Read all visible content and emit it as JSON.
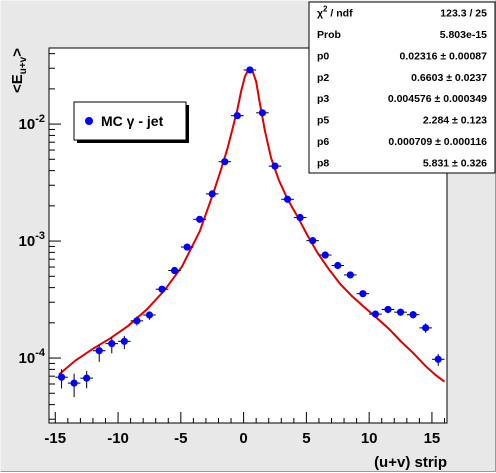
{
  "chart_data": {
    "type": "scatter",
    "title": "",
    "xlabel": "(u+v) strip",
    "ylabel_main": "<E",
    "ylabel_sub": "u+v",
    "ylabel_end": ">",
    "xlim": [
      -15.5,
      16.2
    ],
    "ylim": [
      2.785e-05,
      0.0447
    ],
    "yscale": "log",
    "grid": false,
    "legend_position": "top-left",
    "x_ticks": [
      -15,
      -10,
      -5,
      0,
      5,
      10,
      15
    ],
    "x_tick_labels": [
      "-15",
      "-10",
      "-5",
      "0",
      "5",
      "10",
      "15"
    ],
    "y_ticks": [
      0.0001,
      0.001,
      0.01
    ],
    "y_tick_labels": [
      {
        "base": "10",
        "exp": "-4"
      },
      {
        "base": "10",
        "exp": "-3"
      },
      {
        "base": "10",
        "exp": "-2"
      }
    ],
    "series": [
      {
        "name": "MC γ - jet",
        "color": "#0000ff",
        "points": [
          {
            "x": -14.5,
            "y": 6.857e-05,
            "yerr_lo": 1.37e-05,
            "yerr_hi": 1.17e-05
          },
          {
            "x": -13.5,
            "y": 6.107e-05,
            "yerr_lo": 1.47e-05,
            "yerr_hi": 1.25e-05
          },
          {
            "x": -12.5,
            "y": 6.734e-05,
            "yerr_lo": 1.22e-05,
            "yerr_hi": 1.01e-05
          },
          {
            "x": -11.5,
            "y": 0.0001155,
            "yerr_lo": 2.27e-05,
            "yerr_hi": 1.44e-05
          },
          {
            "x": -10.5,
            "y": 0.0001328,
            "yerr_lo": 2.29e-05,
            "yerr_hi": 1.53e-05
          },
          {
            "x": -9.5,
            "y": 0.000139,
            "yerr_lo": 1.98e-05,
            "yerr_hi": 1.58e-05
          },
          {
            "x": -8.5,
            "y": 0.000208,
            "yerr_lo": 1.83e-05,
            "yerr_hi": 1.89e-05
          },
          {
            "x": -7.5,
            "y": 0.0002333,
            "yerr_lo": 2.1e-05,
            "yerr_hi": 1.5e-05
          },
          {
            "x": -6.5,
            "y": 0.0003876,
            "yerr_lo": 2e-05,
            "yerr_hi": 2e-05
          },
          {
            "x": -5.5,
            "y": 0.00056,
            "yerr_lo": 3e-05,
            "yerr_hi": 3e-05
          },
          {
            "x": -4.5,
            "y": 0.000889,
            "yerr_lo": 4e-05,
            "yerr_hi": 4e-05
          },
          {
            "x": -3.5,
            "y": 0.001535,
            "yerr_lo": 6e-05,
            "yerr_hi": 6e-05
          },
          {
            "x": -2.5,
            "y": 0.00253,
            "yerr_lo": 8e-05,
            "yerr_hi": 8e-05
          },
          {
            "x": -1.5,
            "y": 0.004766,
            "yerr_lo": 0.0001,
            "yerr_hi": 0.0001
          },
          {
            "x": -0.5,
            "y": 0.0118,
            "yerr_lo": 0.0002,
            "yerr_hi": 0.0002
          },
          {
            "x": 0.5,
            "y": 0.02902,
            "yerr_lo": 0.0004,
            "yerr_hi": 0.0004
          },
          {
            "x": 1.5,
            "y": 0.01248,
            "yerr_lo": 0.0002,
            "yerr_hi": 0.0002
          },
          {
            "x": 2.5,
            "y": 0.00437,
            "yerr_lo": 0.0001,
            "yerr_hi": 0.0001
          },
          {
            "x": 3.5,
            "y": 0.002276,
            "yerr_lo": 8e-05,
            "yerr_hi": 8e-05
          },
          {
            "x": 4.5,
            "y": 0.001589,
            "yerr_lo": 6e-05,
            "yerr_hi": 6e-05
          },
          {
            "x": 5.5,
            "y": 0.001008,
            "yerr_lo": 5e-05,
            "yerr_hi": 5e-05
          },
          {
            "x": 6.5,
            "y": 0.0007598,
            "yerr_lo": 4e-05,
            "yerr_hi": 4e-05
          },
          {
            "x": 7.5,
            "y": 0.0006184,
            "yerr_lo": 3e-05,
            "yerr_hi": 3e-05
          },
          {
            "x": 8.5,
            "y": 0.0005135,
            "yerr_lo": 3e-05,
            "yerr_hi": 3e-05
          },
          {
            "x": 9.5,
            "y": 0.000355,
            "yerr_lo": 2e-05,
            "yerr_hi": 2e-05
          },
          {
            "x": 10.5,
            "y": 0.0002375,
            "yerr_lo": 1.7e-05,
            "yerr_hi": 1.7e-05
          },
          {
            "x": 11.5,
            "y": 0.0002603,
            "yerr_lo": 1.8e-05,
            "yerr_hi": 1.8e-05
          },
          {
            "x": 12.5,
            "y": 0.0002467,
            "yerr_lo": 1.7e-05,
            "yerr_hi": 1.7e-05
          },
          {
            "x": 13.5,
            "y": 0.0002347,
            "yerr_lo": 1.7e-05,
            "yerr_hi": 1.7e-05
          },
          {
            "x": 14.5,
            "y": 0.0001811,
            "yerr_lo": 1.65e-05,
            "yerr_hi": 1.65e-05
          },
          {
            "x": 15.5,
            "y": 9.76e-05,
            "yerr_lo": 1.19e-05,
            "yerr_hi": 1.08e-05
          }
        ]
      },
      {
        "color": "#dd0000",
        "curve": [
          {
            "x": -14.7,
            "y": 7.23e-05
          },
          {
            "x": -13.4,
            "y": 9.53e-05
          },
          {
            "x": -12.0,
            "y": 0.0001199
          },
          {
            "x": -10.6,
            "y": 0.0001479
          },
          {
            "x": -9.2,
            "y": 0.0001882
          },
          {
            "x": -7.7,
            "y": 0.0002606
          },
          {
            "x": -6.3,
            "y": 0.0003791
          },
          {
            "x": -4.9,
            "y": 0.000609
          },
          {
            "x": -3.5,
            "y": 0.00121
          },
          {
            "x": -2.4,
            "y": 0.002598
          },
          {
            "x": -1.8,
            "y": 0.00409
          },
          {
            "x": -1.3,
            "y": 0.006107
          },
          {
            "x": -0.9,
            "y": 0.008955
          },
          {
            "x": -0.5,
            "y": 0.01323
          },
          {
            "x": -0.2,
            "y": 0.01902
          },
          {
            "x": 0.1,
            "y": 0.02547
          },
          {
            "x": 0.4,
            "y": 0.0295
          },
          {
            "x": 0.7,
            "y": 0.02872
          },
          {
            "x": 1.0,
            "y": 0.023
          },
          {
            "x": 1.3,
            "y": 0.01495
          },
          {
            "x": 1.7,
            "y": 0.008776
          },
          {
            "x": 2.2,
            "y": 0.0051
          },
          {
            "x": 2.8,
            "y": 0.003325
          },
          {
            "x": 3.5,
            "y": 0.002287
          },
          {
            "x": 4.3,
            "y": 0.001616
          },
          {
            "x": 5.1,
            "y": 0.001113
          },
          {
            "x": 5.9,
            "y": 0.000789
          },
          {
            "x": 6.8,
            "y": 0.0005727
          },
          {
            "x": 7.7,
            "y": 0.0004289
          },
          {
            "x": 8.6,
            "y": 0.0003403
          },
          {
            "x": 9.6,
            "y": 0.0002729
          },
          {
            "x": 10.6,
            "y": 0.0002204
          },
          {
            "x": 11.6,
            "y": 0.0001767
          },
          {
            "x": 12.5,
            "y": 0.00014
          },
          {
            "x": 13.5,
            "y": 0.0001106
          },
          {
            "x": 14.5,
            "y": 8.52e-05
          },
          {
            "x": 15.3,
            "y": 7.15e-05
          },
          {
            "x": 16.0,
            "y": 6.28e-05
          }
        ]
      }
    ],
    "legend": {
      "label": "MC γ - jet",
      "marker_color": "#0000ff"
    },
    "stats_box": [
      {
        "label_main": "χ",
        "label_sup": "2",
        "label_rest": " / ndf",
        "value": "123.3 / 25"
      },
      {
        "label_main": "Prob",
        "label_sup": "",
        "label_rest": "",
        "value": "5.803e-15"
      },
      {
        "label_main": "p0",
        "label_sup": "",
        "label_rest": "",
        "value": "0.02316 ± 0.00087"
      },
      {
        "label_main": "p2",
        "label_sup": "",
        "label_rest": "",
        "value": "0.6603 ± 0.0237"
      },
      {
        "label_main": "p3",
        "label_sup": "",
        "label_rest": "",
        "value": "0.004576 ± 0.000349"
      },
      {
        "label_main": "p5",
        "label_sup": "",
        "label_rest": "",
        "value": "2.284 ± 0.123"
      },
      {
        "label_main": "p6",
        "label_sup": "",
        "label_rest": "",
        "value": "0.000709 ± 0.000116"
      },
      {
        "label_main": "p8",
        "label_sup": "",
        "label_rest": "",
        "value": "5.831 ± 0.326"
      }
    ]
  }
}
